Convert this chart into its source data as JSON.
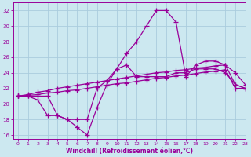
{
  "xlabel": "Windchill (Refroidissement éolien,°C)",
  "xlim": [
    -0.5,
    23
  ],
  "ylim": [
    15.5,
    33
  ],
  "xticks": [
    0,
    1,
    2,
    3,
    4,
    5,
    6,
    7,
    8,
    9,
    10,
    11,
    12,
    13,
    14,
    15,
    16,
    17,
    18,
    19,
    20,
    21,
    22,
    23
  ],
  "yticks": [
    16,
    18,
    20,
    22,
    24,
    26,
    28,
    30,
    32
  ],
  "bg_color": "#cce8f0",
  "grid_color": "#aaccdd",
  "line_color": "#990099",
  "line_width": 0.9,
  "marker": "+",
  "marker_size": 4,
  "marker_lw": 0.9,
  "series": [
    [
      21.0,
      21.0,
      20.5,
      18.5,
      18.5,
      18.0,
      17.0,
      16.0,
      19.5,
      22.5,
      24.5,
      26.5,
      28.0,
      30.0,
      32.0,
      32.0,
      30.5,
      23.5,
      25.0,
      25.5,
      25.5,
      25.0,
      24.0,
      22.5
    ],
    [
      21.0,
      21.0,
      21.0,
      21.0,
      18.5,
      18.0,
      18.0,
      18.0,
      22.0,
      23.0,
      24.5,
      25.0,
      23.5,
      23.5,
      23.5,
      23.5,
      24.0,
      24.0,
      24.5,
      24.5,
      24.5,
      24.0,
      22.5,
      22.0
    ],
    [
      21.0,
      21.1,
      21.2,
      21.4,
      21.5,
      21.7,
      21.8,
      22.0,
      22.2,
      22.4,
      22.6,
      22.7,
      22.9,
      23.1,
      23.3,
      23.4,
      23.6,
      23.7,
      23.9,
      24.1,
      24.2,
      24.4,
      22.0,
      22.0
    ],
    [
      21.0,
      21.2,
      21.5,
      21.7,
      22.0,
      22.2,
      22.4,
      22.6,
      22.8,
      23.0,
      23.2,
      23.4,
      23.6,
      23.8,
      24.0,
      24.1,
      24.3,
      24.4,
      24.6,
      24.7,
      24.9,
      25.0,
      22.5,
      22.0
    ]
  ]
}
